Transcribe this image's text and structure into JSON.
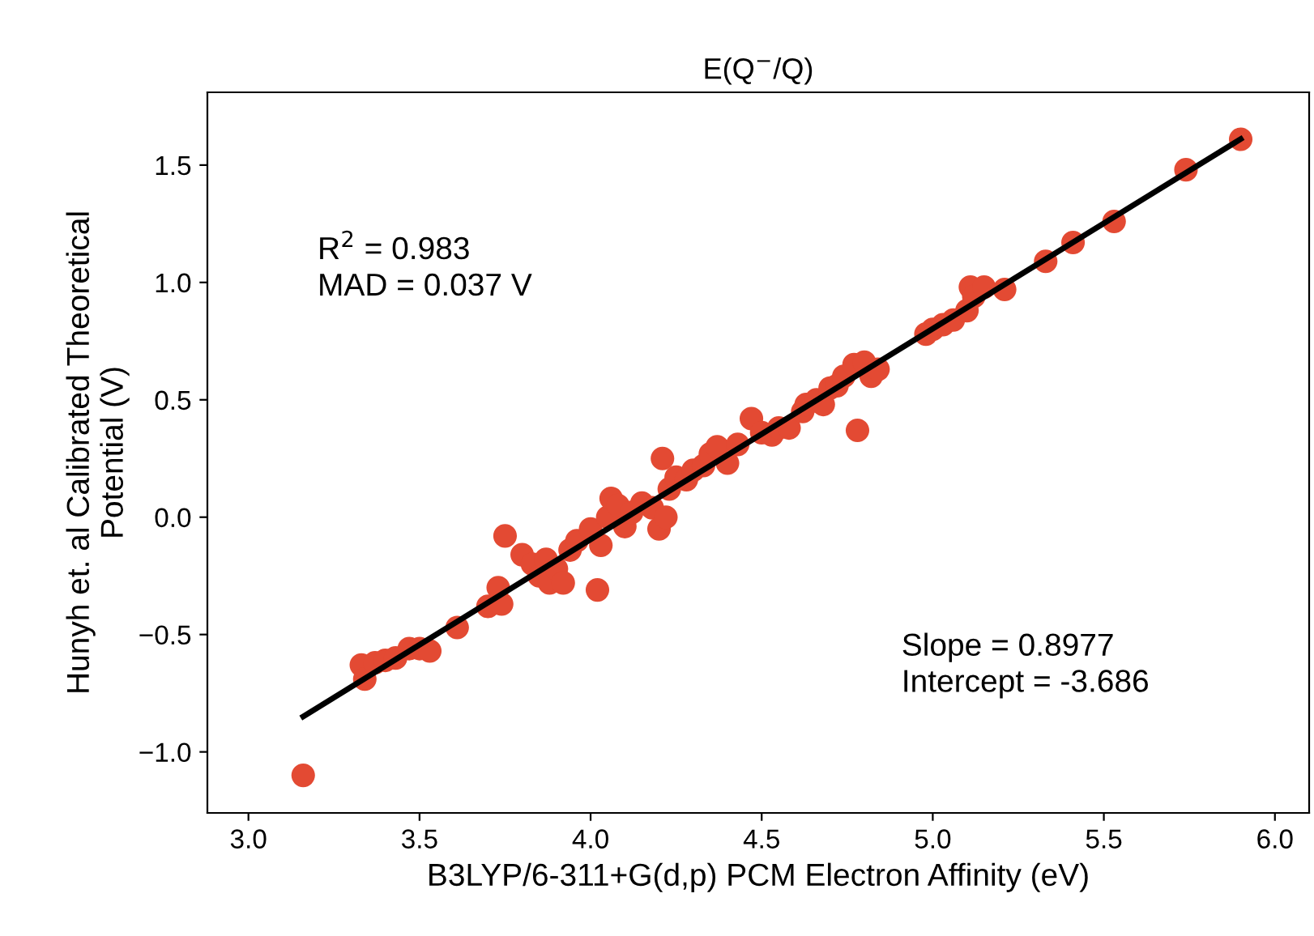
{
  "chart_data": {
    "type": "scatter",
    "title": "E(Q$^{−}$/Q)",
    "xlabel": "B3LYP/6-311+G(d,p) PCM Electron Affinity (eV)",
    "ylabel": "Hunyh et. al Calibrated Theoretical\nPotential (V)",
    "xlim": [
      2.88,
      6.1
    ],
    "ylim": [
      -1.26,
      1.81
    ],
    "xticks": [
      {
        "value": 3.0,
        "label": "3.0"
      },
      3.5,
      {
        "value": 4.0,
        "label": "4.0"
      },
      4.5,
      {
        "value": 5.0,
        "label": "5.0"
      },
      5.5,
      {
        "value": 6.0,
        "label": "6.0"
      }
    ],
    "yticks": [
      {
        "value": -1.0,
        "label": "−1.0"
      },
      -0.5,
      {
        "value": 0.0,
        "label": "0.0"
      },
      0.5,
      {
        "value": 1.0,
        "label": "1.0"
      },
      1.5
    ],
    "grid": false,
    "annotations": [
      {
        "text": "R$^{2}$ = 0.983\nMAD = 0.037 V"
      },
      {
        "text": "Slope = 0.8977\nIntercept = -3.686"
      }
    ],
    "series": [
      {
        "color": "#e34a33",
        "x": [
          3.16,
          3.33,
          3.34,
          3.37,
          3.4,
          3.43,
          3.47,
          3.5,
          3.53,
          3.61,
          3.7,
          3.73,
          3.74,
          3.75,
          3.8,
          3.83,
          3.85,
          3.87,
          3.88,
          3.9,
          3.92,
          3.94,
          3.96,
          4.0,
          4.02,
          4.03,
          4.05,
          4.06,
          4.08,
          4.1,
          4.12,
          4.15,
          4.18,
          4.2,
          4.21,
          4.22,
          4.23,
          4.25,
          4.28,
          4.3,
          4.33,
          4.35,
          4.37,
          4.4,
          4.43,
          4.47,
          4.5,
          4.53,
          4.55,
          4.58,
          4.62,
          4.63,
          4.66,
          4.68,
          4.7,
          4.72,
          4.74,
          4.77,
          4.78,
          4.8,
          4.82,
          4.84,
          4.98,
          5.0,
          5.03,
          5.06,
          5.1,
          5.11,
          5.12,
          5.15,
          5.21,
          5.33,
          5.41,
          5.53,
          5.74,
          5.9
        ],
        "values": [
          -1.1,
          -0.63,
          -0.69,
          -0.62,
          -0.61,
          -0.6,
          -0.56,
          -0.56,
          -0.57,
          -0.47,
          -0.38,
          -0.3,
          -0.37,
          -0.08,
          -0.16,
          -0.2,
          -0.25,
          -0.18,
          -0.28,
          -0.22,
          -0.28,
          -0.14,
          -0.1,
          -0.05,
          -0.31,
          -0.12,
          0.0,
          0.08,
          0.05,
          -0.04,
          0.02,
          0.06,
          0.04,
          -0.05,
          0.25,
          0.0,
          0.12,
          0.17,
          0.16,
          0.2,
          0.22,
          0.27,
          0.3,
          0.23,
          0.31,
          0.42,
          0.36,
          0.35,
          0.38,
          0.38,
          0.45,
          0.48,
          0.5,
          0.48,
          0.55,
          0.56,
          0.6,
          0.65,
          0.37,
          0.66,
          0.6,
          0.63,
          0.78,
          0.8,
          0.82,
          0.84,
          0.88,
          0.98,
          0.94,
          0.98,
          0.97,
          1.09,
          1.17,
          1.26,
          1.48,
          1.61
        ]
      },
      {
        "type": "line",
        "color": "#000000",
        "x": [
          3.16,
          5.9
        ],
        "values": [
          -0.849,
          1.611
        ]
      }
    ]
  }
}
